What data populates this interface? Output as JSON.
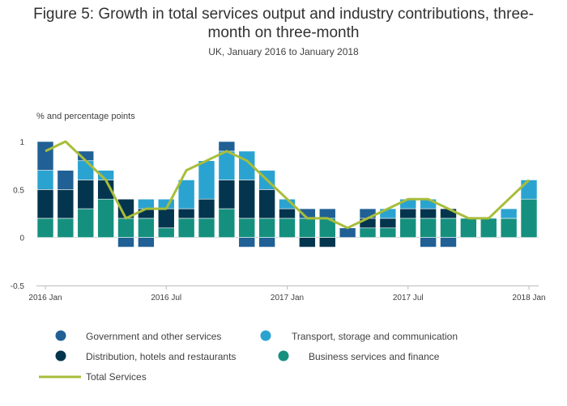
{
  "chart_data": {
    "type": "bar",
    "title_line1": "Figure 5: Growth in total services output and industry contributions, three-",
    "title_line2": "month on three-month",
    "subtitle": "UK, January 2016 to January 2018",
    "ylabel": "% and percentage points",
    "xlabel": "",
    "ylim": [
      -0.5,
      1
    ],
    "yticks": [
      "1",
      "0.5",
      "0",
      "-0.5"
    ],
    "ytick_values": [
      1,
      0.5,
      0,
      -0.5
    ],
    "xticks": [
      "2016 Jan",
      "2016 Jul",
      "2017 Jan",
      "2017 Jul",
      "2018 Jan"
    ],
    "xtick_index": [
      0,
      6,
      12,
      18,
      24
    ],
    "categories": [
      "2016 Jan",
      "2016 Feb",
      "2016 Mar",
      "2016 Apr",
      "2016 May",
      "2016 Jun",
      "2016 Jul",
      "2016 Aug",
      "2016 Sep",
      "2016 Oct",
      "2016 Nov",
      "2016 Dec",
      "2017 Jan",
      "2017 Feb",
      "2017 Mar",
      "2017 Apr",
      "2017 May",
      "2017 Jun",
      "2017 Jul",
      "2017 Aug",
      "2017 Sep",
      "2017 Oct",
      "2017 Nov",
      "2017 Dec",
      "2018 Jan"
    ],
    "series": [
      {
        "name": "Business services and finance",
        "key": "business",
        "color": "#15907f",
        "values": [
          0.2,
          0.2,
          0.3,
          0.4,
          0.2,
          0.2,
          0.1,
          0.2,
          0.2,
          0.3,
          0.2,
          0.2,
          0.2,
          0.2,
          0.2,
          0.0,
          0.1,
          0.1,
          0.2,
          0.2,
          0.2,
          0.2,
          0.2,
          0.2,
          0.4
        ]
      },
      {
        "name": "Distribution, hotels and restaurants",
        "key": "distribution",
        "color": "#04354e",
        "values": [
          0.3,
          0.3,
          0.3,
          0.2,
          0.2,
          0.1,
          0.2,
          0.1,
          0.2,
          0.3,
          0.4,
          0.3,
          0.1,
          -0.1,
          -0.1,
          0.0,
          0.1,
          0.1,
          0.1,
          0.1,
          0.1,
          0.0,
          0.0,
          0.0,
          0.0
        ]
      },
      {
        "name": "Transport, storage and communication",
        "key": "transport",
        "color": "#2ba3d1",
        "values": [
          0.2,
          0.0,
          0.2,
          0.1,
          0.0,
          0.1,
          0.1,
          0.3,
          0.4,
          0.3,
          0.3,
          0.2,
          0.1,
          0.0,
          0.0,
          0.0,
          0.0,
          0.1,
          0.1,
          0.1,
          0.0,
          0.0,
          0.0,
          0.1,
          0.2
        ]
      },
      {
        "name": "Government and other services",
        "key": "government",
        "color": "#206095",
        "values": [
          0.3,
          0.2,
          0.1,
          0.0,
          -0.1,
          -0.1,
          0.0,
          0.0,
          0.0,
          0.1,
          -0.1,
          -0.1,
          0.0,
          0.1,
          0.1,
          0.1,
          0.1,
          0.0,
          0.0,
          -0.1,
          -0.1,
          0.0,
          0.0,
          0.0,
          0.0
        ]
      }
    ],
    "line": {
      "name": "Total Services",
      "color": "#a8bd3a",
      "values": [
        0.9,
        1.0,
        0.8,
        0.6,
        0.2,
        0.3,
        0.3,
        0.7,
        0.8,
        0.9,
        0.8,
        0.6,
        0.4,
        0.2,
        0.2,
        0.1,
        0.2,
        0.3,
        0.4,
        0.4,
        0.3,
        0.2,
        0.2,
        0.4,
        0.6
      ]
    },
    "grid": false,
    "legend_placement": "bottom",
    "legend": [
      {
        "label": "Government and other services",
        "key": "government"
      },
      {
        "label": "Transport, storage and communication",
        "key": "transport"
      },
      {
        "label": "Distribution, hotels and restaurants",
        "key": "distribution"
      },
      {
        "label": "Business services and finance",
        "key": "business"
      },
      {
        "label": "Total Services",
        "key": "total"
      }
    ]
  }
}
